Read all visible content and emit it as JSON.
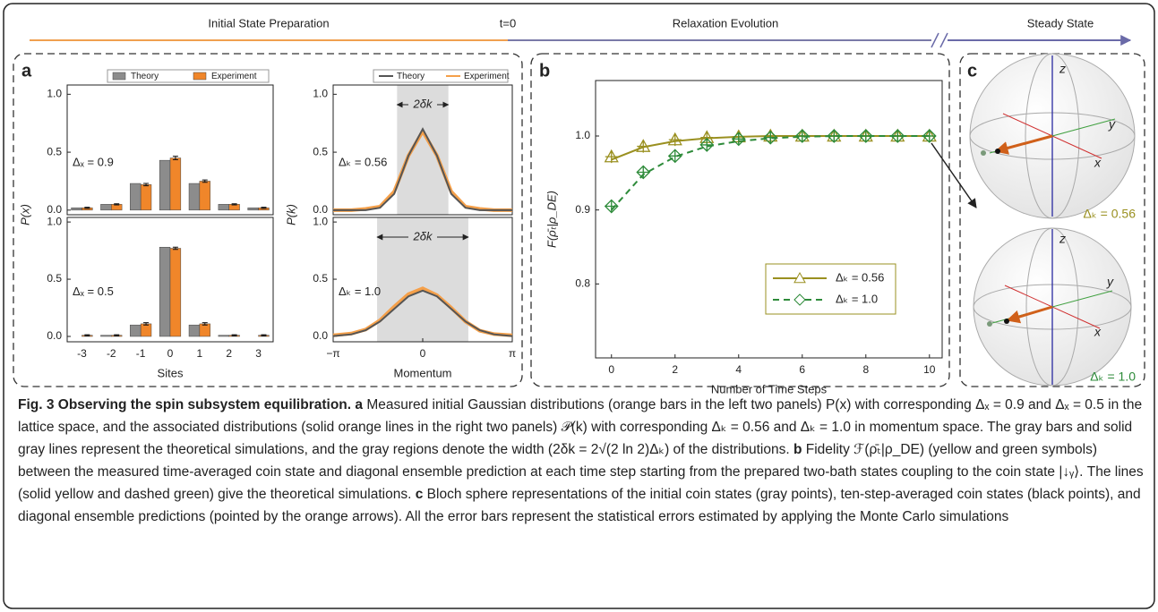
{
  "timeline": {
    "labels": [
      "Initial State Preparation",
      "t=0",
      "Relaxation Evolution",
      "Steady State"
    ]
  },
  "panels": [
    "a",
    "b",
    "c"
  ],
  "chart_data": [
    {
      "type": "bar",
      "legend": "top",
      "ylabel": "P(x)",
      "annotation": "Δₓ = 0.9",
      "categories": [
        null,
        null,
        null,
        null,
        null,
        null,
        null
      ],
      "ylim": [
        -0.04,
        1.08
      ],
      "yticks": [
        {
          "value": 0,
          "label": "0.0"
        },
        {
          "value": 0.5,
          "label": "0.5"
        },
        {
          "value": 1,
          "label": "1.0"
        }
      ],
      "series": [
        {
          "name": "Theory",
          "color": "#8c8c8c",
          "values": [
            0.02,
            0.05,
            0.23,
            0.43,
            0.23,
            0.05,
            0.02
          ]
        },
        {
          "name": "Experiment",
          "color": "#f0862a",
          "values": [
            0.02,
            0.05,
            0.22,
            0.45,
            0.25,
            0.05,
            0.02
          ],
          "errors": [
            0.005,
            0.005,
            0.01,
            0.015,
            0.01,
            0.005,
            0.005
          ]
        }
      ]
    },
    {
      "type": "bar",
      "xlabel": "Sites",
      "annotation": "Δₓ = 0.5",
      "categories": [
        "-3",
        "-2",
        "-1",
        "0",
        "1",
        "2",
        "3"
      ],
      "ylim": [
        -0.047,
        1.04
      ],
      "yticks": [
        {
          "value": 0,
          "label": "0.0"
        },
        {
          "value": 0.5,
          "label": "0.5"
        },
        {
          "value": 1,
          "label": "1.0"
        }
      ],
      "series": [
        {
          "color": "#8c8c8c",
          "values": [
            0.0,
            0.01,
            0.1,
            0.78,
            0.1,
            0.01,
            0.0
          ]
        },
        {
          "color": "#f0862a",
          "values": [
            0.01,
            0.01,
            0.11,
            0.77,
            0.11,
            0.01,
            0.01
          ],
          "errors": [
            0.005,
            0.005,
            0.01,
            0.01,
            0.01,
            0.005,
            0.005
          ]
        }
      ]
    },
    {
      "type": "line",
      "legend": "top",
      "ylabel": "P(k)",
      "annotation": "Δₖ = 0.56",
      "width_label": "2δk",
      "shade": [
        -0.9,
        0.9
      ],
      "x": [
        -3.14,
        -2.5,
        -2,
        -1.5,
        -1,
        -0.5,
        0,
        0.5,
        1,
        1.5,
        2,
        2.5,
        3.14
      ],
      "xlim": [
        -3.14,
        3.14
      ],
      "ylim": [
        -0.04,
        1.08
      ],
      "yticks": [
        {
          "value": 0,
          "label": "0.0"
        },
        {
          "value": 0.5,
          "label": "0.5"
        },
        {
          "value": 1,
          "label": "1.0"
        }
      ],
      "series": [
        {
          "name": "Theory",
          "color": "#555555",
          "values": [
            0,
            0,
            0,
            0.02,
            0.14,
            0.47,
            0.7,
            0.47,
            0.14,
            0.02,
            0,
            0,
            0
          ]
        },
        {
          "name": "Experiment",
          "color": "#f5a04a",
          "values": [
            0,
            0,
            0.01,
            0.03,
            0.16,
            0.47,
            0.68,
            0.47,
            0.16,
            0.03,
            0.01,
            0,
            0
          ]
        }
      ]
    },
    {
      "type": "line",
      "xlabel": "Momentum",
      "annotation": "Δₖ = 1.0",
      "width_label": "2δk",
      "shade": [
        -1.6,
        1.6
      ],
      "x": [
        -3.14,
        -2.5,
        -2,
        -1.5,
        -1,
        -0.5,
        0,
        0.5,
        1,
        1.5,
        2,
        2.5,
        3.14
      ],
      "xlim": [
        -3.14,
        3.14
      ],
      "ylim": [
        -0.047,
        1.04
      ],
      "xticks": [
        {
          "value": -3.14,
          "label": "−π"
        },
        0,
        {
          "value": 3.14,
          "label": "π"
        }
      ],
      "yticks": [
        {
          "value": 0,
          "label": "0.0"
        },
        {
          "value": 0.5,
          "label": "0.5"
        },
        {
          "value": 1,
          "label": "1.0"
        }
      ],
      "series": [
        {
          "color": "#555555",
          "values": [
            0.003,
            0.018,
            0.054,
            0.13,
            0.24,
            0.35,
            0.4,
            0.35,
            0.24,
            0.13,
            0.054,
            0.018,
            0.003
          ]
        },
        {
          "color": "#f5a04a",
          "values": [
            0.01,
            0.025,
            0.06,
            0.14,
            0.26,
            0.37,
            0.42,
            0.36,
            0.25,
            0.13,
            0.05,
            0.02,
            0.01
          ]
        }
      ]
    },
    {
      "type": "scatter",
      "legend": "lower right",
      "xlabel": "Number of Time Steps",
      "ylabel": "F(ρ̄ₜ|ρ_DE)",
      "x": [
        0,
        1,
        2,
        3,
        4,
        5,
        6,
        7,
        8,
        9,
        10
      ],
      "xlim": [
        -0.5,
        10.4
      ],
      "ylim": [
        0.7,
        1.075
      ],
      "xticks": [
        0,
        2,
        4,
        6,
        8,
        10
      ],
      "yticks": [
        0.8,
        0.9,
        {
          "value": 1,
          "label": "1.0"
        }
      ],
      "series": [
        {
          "name": "Δₖ = 0.56",
          "color": "#9a9020",
          "marker": "triangle",
          "dash": false,
          "values": [
            0.972,
            0.986,
            0.995,
            0.998,
            0.999,
            1,
            1,
            1,
            1,
            1,
            1
          ],
          "fit": [
            0.968,
            0.985,
            0.993,
            0.997,
            0.999,
            1,
            1,
            1,
            1,
            1,
            1
          ]
        },
        {
          "name": "Δₖ = 1.0",
          "color": "#2e8b3a",
          "marker": "diamond",
          "dash": true,
          "values": [
            0.905,
            0.951,
            0.973,
            0.988,
            0.996,
            0.998,
            1,
            1,
            1,
            1,
            1
          ],
          "fit": [
            0.9,
            0.948,
            0.972,
            0.986,
            0.993,
            0.997,
            0.999,
            1,
            1,
            1,
            1
          ]
        }
      ]
    }
  ],
  "bloch": [
    {
      "axis_labels": [
        "z",
        "y",
        "x"
      ],
      "label": "Δₖ = 0.56"
    },
    {
      "axis_labels": [
        "z",
        "y",
        "x"
      ],
      "label": "Δₖ = 1.0"
    }
  ],
  "caption": {
    "title": "Fig. 3 Observing the spin subsystem equilibration.",
    "a_label": "a",
    "a_text": "Measured initial Gaussian distributions (orange bars in the left two panels) P(x) with corresponding Δₓ = 0.9 and Δₓ = 0.5 in the lattice space, and the associated distributions (solid orange lines in the right two panels) 𝒫(k) with corresponding Δₖ = 0.56 and Δₖ = 1.0 in momentum space. The gray bars and solid gray lines represent the theoretical simulations, and the gray regions denote the width (2δk = 2√(2 ln 2)Δₖ) of the distributions.",
    "b_label": "b",
    "b_text": "Fidelity ℱ(ρ̄ₜ|ρ_DE) (yellow and green symbols) between the measured time-averaged coin state and diagonal ensemble prediction at each time step starting from the prepared two-bath states coupling to the coin state |↓ᵧ⟩. The lines (solid yellow and dashed green) give the theoretical simulations.",
    "c_label": "c",
    "c_text": "Bloch sphere representations of the initial coin states (gray points), ten-step-averaged coin states (black points), and diagonal ensemble predictions (pointed by the orange arrows). All the error bars represent the statistical errors estimated by applying the Monte Carlo simulations"
  }
}
